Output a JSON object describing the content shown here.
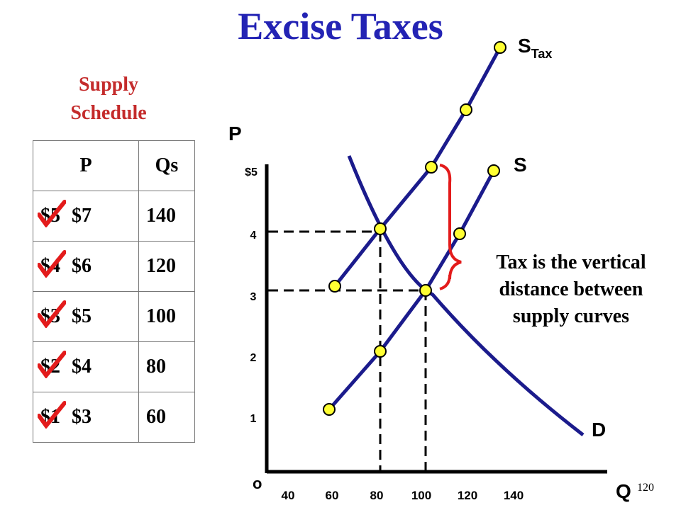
{
  "title": "Excise Taxes",
  "schedule": {
    "heading_line1": "Supply",
    "heading_line2": "Schedule",
    "col_p": "P",
    "col_qs": "Qs",
    "rows": [
      {
        "old_price": "$5",
        "new_price": "$7",
        "qs": "140"
      },
      {
        "old_price": "$4",
        "new_price": "$6",
        "qs": "120"
      },
      {
        "old_price": "$3",
        "new_price": "$5",
        "qs": "100"
      },
      {
        "old_price": "$2",
        "new_price": "$4",
        "qs": "80"
      },
      {
        "old_price": "$1",
        "new_price": "$3",
        "qs": "60"
      }
    ]
  },
  "graph": {
    "y_axis_label": "P",
    "x_axis_label": "Q",
    "origin_label": "o",
    "y_ticks": [
      "$5",
      "4",
      "3",
      "2",
      "1"
    ],
    "x_ticks": [
      "40",
      "60",
      "80",
      "100",
      "120",
      "140"
    ],
    "curve_labels": {
      "s_tax_main": "S",
      "s_tax_sub": "Tax",
      "supply": "S",
      "demand": "D"
    },
    "note_line1": "Tax is the vertical",
    "note_line2": "distance between",
    "note_line3": "supply curves"
  },
  "page_number": "120",
  "colors": {
    "curve": "#1b1b8c",
    "point_fill": "#ffff33",
    "title": "#2323b4",
    "subtitle": "#c42b2b",
    "check": "#e31b1b",
    "brace": "#e31b1b"
  }
}
